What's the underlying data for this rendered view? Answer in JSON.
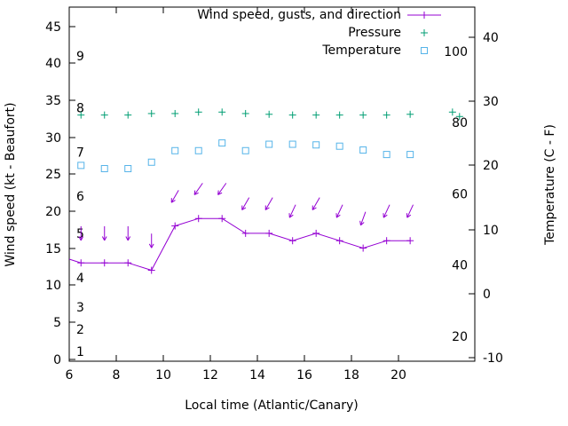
{
  "chart_data": {
    "type": "line",
    "title": "",
    "xlabel": "Local time (Atlantic/Canary)",
    "ylabel_left": "Wind speed (kt - Beaufort)",
    "ylabel_right": "Temperature (C - F)",
    "x_range": [
      6,
      23.25
    ],
    "x_ticks": [
      6,
      8,
      10,
      12,
      14,
      16,
      18,
      20
    ],
    "y_left_range": [
      -0.3,
      47.6
    ],
    "y_left_ticks": [
      0,
      5,
      10,
      15,
      20,
      25,
      30,
      35,
      40,
      45
    ],
    "y_right_range": [
      -10.55,
      44.7
    ],
    "y_right_ticks": [
      -10,
      0,
      10,
      20,
      30,
      40
    ],
    "grid": false,
    "legend_position": "top-right-inside",
    "legend": {
      "wind": "Wind speed, gusts, and direction",
      "pressure": "Pressure",
      "temperature": "Temperature"
    },
    "colors": {
      "wind": "#9400d3",
      "pressure": "#009e73",
      "temperature": "#56b4e9",
      "axis": "#000000",
      "background": "#ffffff"
    },
    "beaufort_scale": [
      {
        "bf": 1,
        "kt": 1
      },
      {
        "bf": 2,
        "kt": 4
      },
      {
        "bf": 3,
        "kt": 7
      },
      {
        "bf": 4,
        "kt": 11
      },
      {
        "bf": 5,
        "kt": 17
      },
      {
        "bf": 6,
        "kt": 22
      },
      {
        "bf": 7,
        "kt": 28
      },
      {
        "bf": 8,
        "kt": 34
      },
      {
        "bf": 9,
        "kt": 41
      }
    ],
    "fahrenheit_scale": [
      {
        "f": 20,
        "c": -6.67
      },
      {
        "f": 40,
        "c": 4.44
      },
      {
        "f": 60,
        "c": 15.56
      },
      {
        "f": 80,
        "c": 26.67
      },
      {
        "f": 100,
        "c": 37.78
      }
    ],
    "series": {
      "wind_speed": {
        "x": [
          6.0,
          6.5,
          7.5,
          8.5,
          9.5,
          10.5,
          11.5,
          12.5,
          13.5,
          14.5,
          15.5,
          16.5,
          17.5,
          18.5,
          19.5,
          20.5
        ],
        "kt": [
          13.5,
          13,
          13,
          13,
          12,
          18,
          19,
          19,
          17,
          17,
          16,
          17,
          16,
          15,
          16,
          16
        ]
      },
      "wind_gusts_direction": {
        "x": [
          6.5,
          7.5,
          8.5,
          9.5,
          10.5,
          11.5,
          12.5,
          13.5,
          14.5,
          15.5,
          16.5,
          17.5,
          18.5,
          19.5,
          20.5
        ],
        "gust_kt": [
          17,
          17,
          17,
          16,
          22,
          23,
          23,
          21,
          21,
          20,
          21,
          20,
          19,
          20,
          20
        ],
        "arrow_tilt_deg": [
          0,
          0,
          0,
          0,
          30,
          35,
          35,
          30,
          30,
          25,
          30,
          25,
          20,
          25,
          25
        ]
      },
      "pressure": {
        "x": [
          6.5,
          7.5,
          8.5,
          9.5,
          10.5,
          11.5,
          12.5,
          13.5,
          14.5,
          15.5,
          16.5,
          17.5,
          18.5,
          19.5,
          20.5,
          22.3,
          22.6
        ],
        "value_left_scale": [
          33,
          33,
          33,
          33.2,
          33.2,
          33.4,
          33.4,
          33.2,
          33.1,
          33,
          33,
          33,
          33,
          33,
          33.1,
          33.4,
          32.8
        ]
      },
      "temperature": {
        "x": [
          6.5,
          7.5,
          8.5,
          9.5,
          10.5,
          11.5,
          12.5,
          13.5,
          14.5,
          15.5,
          16.5,
          17.5,
          18.5,
          19.5,
          20.5
        ],
        "celsius": [
          20,
          19.5,
          19.5,
          20.5,
          22.3,
          22.3,
          23.5,
          22.3,
          23.3,
          23.3,
          23.2,
          23,
          22.4,
          21.7,
          21.7
        ]
      }
    }
  }
}
